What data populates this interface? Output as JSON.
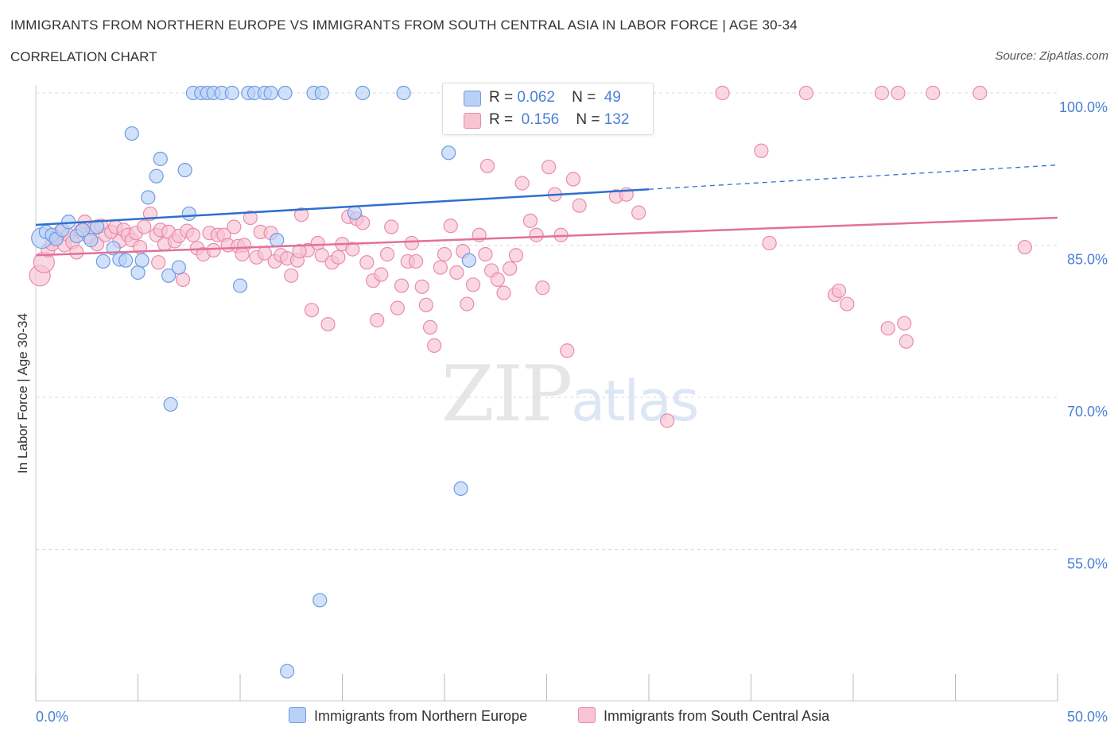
{
  "header": {
    "title": "IMMIGRANTS FROM NORTHERN EUROPE VS IMMIGRANTS FROM SOUTH CENTRAL ASIA IN LABOR FORCE | AGE 30-34",
    "subtitle": "CORRELATION CHART",
    "source": "Source: ZipAtlas.com"
  },
  "watermark": {
    "zip": "ZIP",
    "atlas": "atlas"
  },
  "legend": {
    "rows": [
      {
        "r_label": "R =",
        "r_value": "0.062",
        "n_label": "N =",
        "n_value": "49"
      },
      {
        "r_label": "R =",
        "r_value": "0.156",
        "n_label": "N =",
        "n_value": "132"
      }
    ]
  },
  "colors": {
    "blue_fill": "#b9d1f7",
    "blue_stroke": "#6f9be3",
    "blue_line": "#2f6fcf",
    "pink_fill": "#f8c3d3",
    "pink_stroke": "#e98bab",
    "pink_line": "#e2709a",
    "tick_text": "#4a7fd6",
    "grid": "#dddddd"
  },
  "chart_data": {
    "type": "scatter",
    "title": "IMMIGRANTS FROM NORTHERN EUROPE VS IMMIGRANTS FROM SOUTH CENTRAL ASIA IN LABOR FORCE | AGE 30-34",
    "xlabel": "",
    "ylabel": "In Labor Force | Age 30-34",
    "xlim": [
      0,
      50
    ],
    "ylim": [
      40,
      101
    ],
    "x_tick_labels": [
      "0.0%",
      "50.0%"
    ],
    "y_ticks": [
      {
        "value": 100,
        "label": "100.0%"
      },
      {
        "value": 85,
        "label": "85.0%"
      },
      {
        "value": 70,
        "label": "70.0%"
      },
      {
        "value": 55,
        "label": "55.0%"
      }
    ],
    "grid": true,
    "legend_position": "bottom",
    "series": [
      {
        "name": "Immigrants from Northern Europe",
        "color": "#b9d1f7",
        "trend": {
          "x": [
            0,
            30,
            50
          ],
          "y": [
            87.0,
            90.5,
            92.9
          ],
          "solid_until": 30
        },
        "points": [
          [
            0.3,
            85.7
          ],
          [
            0.5,
            86.3
          ],
          [
            0.8,
            86.0
          ],
          [
            1.0,
            85.6
          ],
          [
            1.3,
            86.5
          ],
          [
            1.6,
            87.3
          ],
          [
            2.0,
            85.9
          ],
          [
            2.3,
            86.5
          ],
          [
            2.7,
            85.5
          ],
          [
            3.0,
            86.8
          ],
          [
            3.3,
            83.4
          ],
          [
            3.8,
            84.7
          ],
          [
            4.1,
            83.6
          ],
          [
            4.4,
            83.5
          ],
          [
            5.0,
            82.3
          ],
          [
            5.2,
            83.5
          ],
          [
            4.7,
            96.0
          ],
          [
            5.5,
            89.7
          ],
          [
            5.9,
            91.8
          ],
          [
            6.1,
            93.5
          ],
          [
            6.5,
            82.0
          ],
          [
            6.6,
            69.3
          ],
          [
            7.0,
            82.8
          ],
          [
            7.3,
            92.4
          ],
          [
            7.5,
            88.1
          ],
          [
            7.7,
            100.0
          ],
          [
            8.1,
            100.0
          ],
          [
            8.4,
            100.0
          ],
          [
            8.7,
            100.0
          ],
          [
            9.1,
            100.0
          ],
          [
            9.6,
            100.0
          ],
          [
            10.0,
            81.0
          ],
          [
            10.4,
            100.0
          ],
          [
            10.7,
            100.0
          ],
          [
            11.2,
            100.0
          ],
          [
            11.5,
            100.0
          ],
          [
            11.8,
            85.5
          ],
          [
            12.2,
            100.0
          ],
          [
            12.3,
            43.0
          ],
          [
            13.6,
            100.0
          ],
          [
            13.9,
            50.0
          ],
          [
            14.0,
            100.0
          ],
          [
            15.6,
            88.2
          ],
          [
            16.0,
            100.0
          ],
          [
            18.0,
            100.0
          ],
          [
            20.2,
            94.1
          ],
          [
            20.8,
            61.0
          ],
          [
            21.2,
            83.5
          ],
          [
            27.7,
            100.0
          ]
        ]
      },
      {
        "name": "Immigrants from South Central Asia",
        "color": "#f8c3d3",
        "trend": {
          "x": [
            0,
            50
          ],
          "y": [
            84.0,
            87.7
          ],
          "solid_until": 50
        },
        "points": [
          [
            0.2,
            82.0
          ],
          [
            0.4,
            83.3
          ],
          [
            0.6,
            84.5
          ],
          [
            0.8,
            85.1
          ],
          [
            1.0,
            85.8
          ],
          [
            1.2,
            86.3
          ],
          [
            1.4,
            85.0
          ],
          [
            1.6,
            86.0
          ],
          [
            1.8,
            85.3
          ],
          [
            2.0,
            84.3
          ],
          [
            2.2,
            86.4
          ],
          [
            2.4,
            87.3
          ],
          [
            2.6,
            85.8
          ],
          [
            2.8,
            86.6
          ],
          [
            3.0,
            85.1
          ],
          [
            3.2,
            86.9
          ],
          [
            3.4,
            86.0
          ],
          [
            3.7,
            86.3
          ],
          [
            3.9,
            86.8
          ],
          [
            4.1,
            85.4
          ],
          [
            4.3,
            86.5
          ],
          [
            4.5,
            86.0
          ],
          [
            4.7,
            85.5
          ],
          [
            4.9,
            86.2
          ],
          [
            5.1,
            84.8
          ],
          [
            5.3,
            86.8
          ],
          [
            5.6,
            88.1
          ],
          [
            5.9,
            86.0
          ],
          [
            6.1,
            86.5
          ],
          [
            6.3,
            85.1
          ],
          [
            6.5,
            86.3
          ],
          [
            6.8,
            85.4
          ],
          [
            7.0,
            85.9
          ],
          [
            7.2,
            81.6
          ],
          [
            7.4,
            86.4
          ],
          [
            7.7,
            86.0
          ],
          [
            7.9,
            84.7
          ],
          [
            8.2,
            84.1
          ],
          [
            8.5,
            86.2
          ],
          [
            8.7,
            84.5
          ],
          [
            8.9,
            86.0
          ],
          [
            9.2,
            86.0
          ],
          [
            9.4,
            85.0
          ],
          [
            9.7,
            86.8
          ],
          [
            9.9,
            84.9
          ],
          [
            10.2,
            85.0
          ],
          [
            10.5,
            87.7
          ],
          [
            10.8,
            83.8
          ],
          [
            11.0,
            86.3
          ],
          [
            11.2,
            84.2
          ],
          [
            11.5,
            86.2
          ],
          [
            11.7,
            83.4
          ],
          [
            12.0,
            84.0
          ],
          [
            12.3,
            83.7
          ],
          [
            12.5,
            82.0
          ],
          [
            12.8,
            83.5
          ],
          [
            13.0,
            88.0
          ],
          [
            13.3,
            84.5
          ],
          [
            13.5,
            78.6
          ],
          [
            13.8,
            85.2
          ],
          [
            14.0,
            84.0
          ],
          [
            14.3,
            77.2
          ],
          [
            14.5,
            83.3
          ],
          [
            14.8,
            83.8
          ],
          [
            15.0,
            85.1
          ],
          [
            15.3,
            87.8
          ],
          [
            15.5,
            84.6
          ],
          [
            15.7,
            87.6
          ],
          [
            16.0,
            87.2
          ],
          [
            16.2,
            83.3
          ],
          [
            16.5,
            81.5
          ],
          [
            16.7,
            77.6
          ],
          [
            16.9,
            82.1
          ],
          [
            17.2,
            84.1
          ],
          [
            17.4,
            86.8
          ],
          [
            17.7,
            78.8
          ],
          [
            17.9,
            81.0
          ],
          [
            18.2,
            83.4
          ],
          [
            18.4,
            85.2
          ],
          [
            18.6,
            83.4
          ],
          [
            18.9,
            80.9
          ],
          [
            19.1,
            79.1
          ],
          [
            19.3,
            76.9
          ],
          [
            19.5,
            75.1
          ],
          [
            19.8,
            82.8
          ],
          [
            20.0,
            84.1
          ],
          [
            20.3,
            86.9
          ],
          [
            20.6,
            82.3
          ],
          [
            20.9,
            84.4
          ],
          [
            21.1,
            79.2
          ],
          [
            21.4,
            81.1
          ],
          [
            21.7,
            86.0
          ],
          [
            22.0,
            84.1
          ],
          [
            22.3,
            82.5
          ],
          [
            22.6,
            81.6
          ],
          [
            22.9,
            80.3
          ],
          [
            23.2,
            82.7
          ],
          [
            23.5,
            84.0
          ],
          [
            23.8,
            91.1
          ],
          [
            24.2,
            87.4
          ],
          [
            24.5,
            86.0
          ],
          [
            24.8,
            80.8
          ],
          [
            25.1,
            92.7
          ],
          [
            25.4,
            90.0
          ],
          [
            25.7,
            86.0
          ],
          [
            26.0,
            74.6
          ],
          [
            26.3,
            91.5
          ],
          [
            26.6,
            88.9
          ],
          [
            28.4,
            89.8
          ],
          [
            28.9,
            90.0
          ],
          [
            29.3,
            97.8
          ],
          [
            29.5,
            88.2
          ],
          [
            30.9,
            67.7
          ],
          [
            33.6,
            100.0
          ],
          [
            35.5,
            94.3
          ],
          [
            35.9,
            85.2
          ],
          [
            37.7,
            100.0
          ],
          [
            39.1,
            80.1
          ],
          [
            39.3,
            80.5
          ],
          [
            39.7,
            79.2
          ],
          [
            41.4,
            100.0
          ],
          [
            41.7,
            76.8
          ],
          [
            42.2,
            100.0
          ],
          [
            42.5,
            77.3
          ],
          [
            42.6,
            75.5
          ],
          [
            43.9,
            100.0
          ],
          [
            46.2,
            100.0
          ],
          [
            48.4,
            84.8
          ],
          [
            22.1,
            92.8
          ],
          [
            10.1,
            84.1
          ],
          [
            6.0,
            83.3
          ],
          [
            12.9,
            84.4
          ]
        ]
      }
    ]
  },
  "bottom_legend": [
    {
      "label": "Immigrants from Northern Europe"
    },
    {
      "label": "Immigrants from South Central Asia"
    }
  ]
}
